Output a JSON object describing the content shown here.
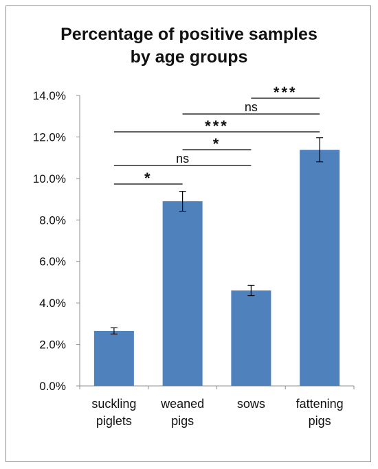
{
  "chart_data": {
    "type": "bar",
    "title_lines": [
      "Percentage of positive samples",
      "by age groups"
    ],
    "categories": [
      [
        "suckling",
        "piglets"
      ],
      [
        "weaned",
        "pigs"
      ],
      [
        "sows"
      ],
      [
        "fattening",
        "pigs"
      ]
    ],
    "values": [
      2.65,
      8.9,
      4.6,
      11.38
    ],
    "errors": [
      0.15,
      0.48,
      0.25,
      0.58
    ],
    "ylim": [
      0,
      14
    ],
    "yticks": [
      "0.0%",
      "2.0%",
      "4.0%",
      "6.0%",
      "8.0%",
      "10.0%",
      "12.0%",
      "14.0%"
    ],
    "grid": false,
    "bar_color": "#4f81bd",
    "significance": [
      {
        "from": 2,
        "to": 3,
        "label": "***"
      },
      {
        "from": 1,
        "to": 3,
        "label": "ns"
      },
      {
        "from": 0,
        "to": 3,
        "label": "***"
      },
      {
        "from": 1,
        "to": 2,
        "label": "*"
      },
      {
        "from": 0,
        "to": 2,
        "label": "ns"
      },
      {
        "from": 0,
        "to": 1,
        "label": "*"
      }
    ]
  }
}
